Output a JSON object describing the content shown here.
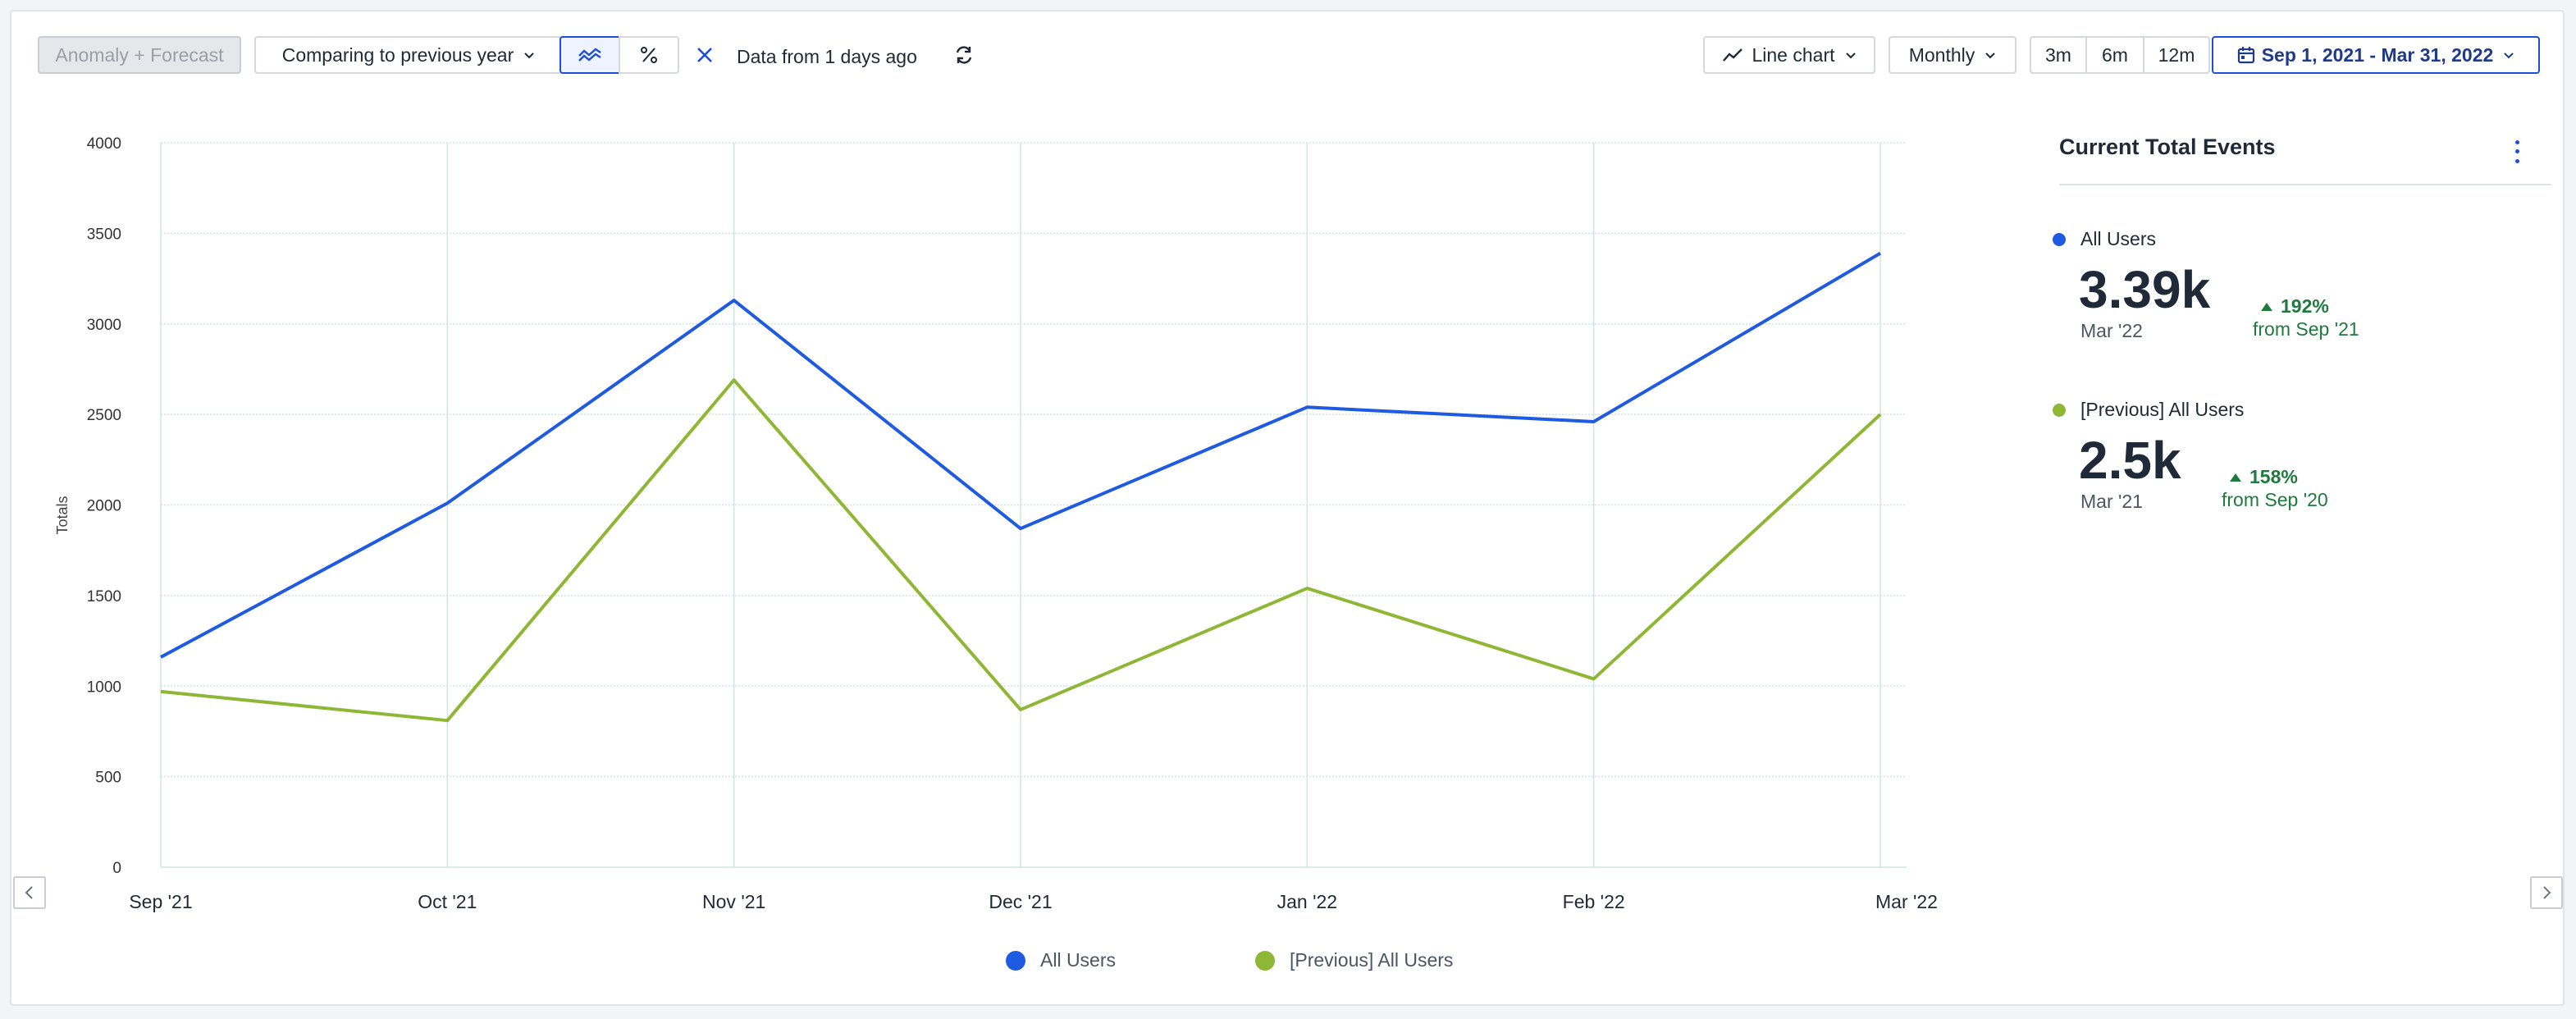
{
  "toolbar": {
    "anomaly_label": "Anomaly + Forecast",
    "compare_label": "Comparing to previous year",
    "data_freshness": "Data from 1 days ago",
    "chart_type_label": "Line chart",
    "interval_label": "Monthly",
    "range_options": [
      "3m",
      "6m",
      "12m"
    ],
    "date_range": "Sep 1, 2021 - Mar 31, 2022"
  },
  "chart_data": {
    "type": "line",
    "ylabel": "Totals",
    "ylim": [
      0,
      4000
    ],
    "yticks": [
      "4000",
      "3500",
      "3000",
      "2500",
      "2000",
      "1500",
      "1000",
      "500",
      "0"
    ],
    "categories": [
      "Sep '21",
      "Oct '21",
      "Nov '21",
      "Dec '21",
      "Jan '22",
      "Feb '22",
      "Mar '22"
    ],
    "grid": true,
    "series": [
      {
        "name": "All Users",
        "color": "#1f5be0",
        "values": [
          1160,
          2010,
          3130,
          1870,
          2540,
          2460,
          3390
        ]
      },
      {
        "name": "[Previous] All Users",
        "color": "#8db734",
        "values": [
          970,
          810,
          2690,
          870,
          1540,
          1040,
          2500
        ]
      }
    ]
  },
  "sidebar": {
    "title": "Current Total Events",
    "metrics": [
      {
        "name": "All Users",
        "value": "3.39k",
        "date": "Mar '22",
        "change": "192%",
        "change_note": "from Sep '21",
        "color": "#1f5be0"
      },
      {
        "name": "[Previous] All Users",
        "value": "2.5k",
        "date": "Mar '21",
        "change": "158%",
        "change_note": "from Sep '20",
        "color": "#8db734"
      }
    ]
  }
}
